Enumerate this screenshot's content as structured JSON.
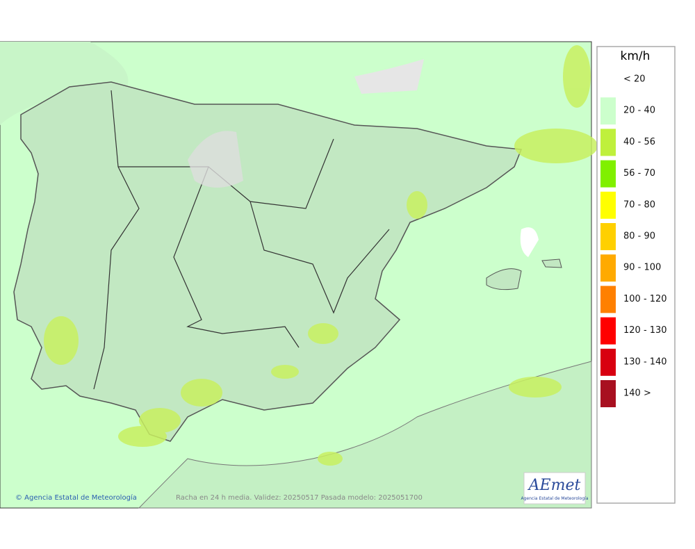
{
  "legend": {
    "title": "km/h",
    "items": [
      {
        "label": "< 20",
        "color": "#ffffff"
      },
      {
        "label": "20 - 40",
        "color": "#ccffcc"
      },
      {
        "label": "40 - 56",
        "color": "#bff03c"
      },
      {
        "label": "56 - 70",
        "color": "#80f000"
      },
      {
        "label": "70 - 80",
        "color": "#ffff00"
      },
      {
        "label": "80 - 90",
        "color": "#ffd000"
      },
      {
        "label": "90 - 100",
        "color": "#ffaa00"
      },
      {
        "label": "100 - 120",
        "color": "#ff8000"
      },
      {
        "label": "120 - 130",
        "color": "#ff0000"
      },
      {
        "label": "130 - 140",
        "color": "#d80010"
      },
      {
        "label": "140 >",
        "color": "#a81020"
      }
    ]
  },
  "credit": "© Agencia Estatal de Meteorología",
  "caption": "Racha en 24 h media. Validez: 20250517 Pasada modelo: 2025051700",
  "logo": {
    "name": "AEmet",
    "subtitle": "Agencia Estatal de Meteorología"
  }
}
